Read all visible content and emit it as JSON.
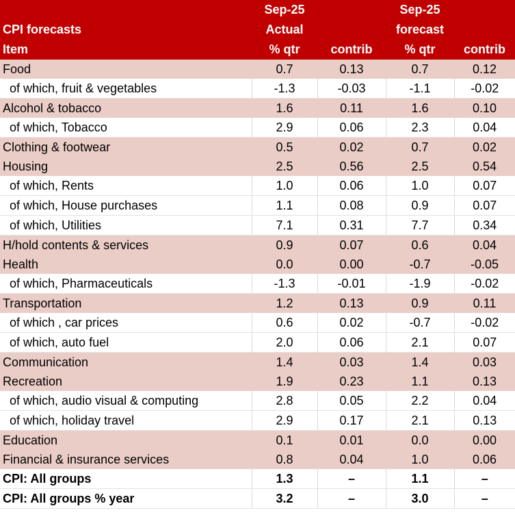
{
  "header": {
    "row1": [
      "",
      "Sep-25",
      "",
      "Sep-25",
      ""
    ],
    "row2": [
      "CPI forecasts",
      "Actual",
      "",
      "forecast",
      ""
    ],
    "row3": [
      "Item",
      "% qtr",
      "contrib",
      "% qtr",
      "contrib"
    ]
  },
  "rows": [
    {
      "type": "major",
      "item": "Food",
      "actual_qtr": "0.7",
      "actual_contrib": "0.13",
      "forecast_qtr": "0.7",
      "forecast_contrib": "0.12"
    },
    {
      "type": "sub",
      "item": "of which, fruit & vegetables",
      "actual_qtr": "-1.3",
      "actual_contrib": "-0.03",
      "forecast_qtr": "-1.1",
      "forecast_contrib": "-0.02"
    },
    {
      "type": "major",
      "item": "Alcohol & tobacco",
      "actual_qtr": "1.6",
      "actual_contrib": "0.11",
      "forecast_qtr": "1.6",
      "forecast_contrib": "0.10"
    },
    {
      "type": "sub",
      "item": "of which, Tobacco",
      "actual_qtr": "2.9",
      "actual_contrib": "0.06",
      "forecast_qtr": "2.3",
      "forecast_contrib": "0.04"
    },
    {
      "type": "major",
      "item": "Clothing & footwear",
      "actual_qtr": "0.5",
      "actual_contrib": "0.02",
      "forecast_qtr": "0.7",
      "forecast_contrib": "0.02"
    },
    {
      "type": "major",
      "item": "Housing",
      "actual_qtr": "2.5",
      "actual_contrib": "0.56",
      "forecast_qtr": "2.5",
      "forecast_contrib": "0.54"
    },
    {
      "type": "sub",
      "item": "of which, Rents",
      "actual_qtr": "1.0",
      "actual_contrib": "0.06",
      "forecast_qtr": "1.0",
      "forecast_contrib": "0.07"
    },
    {
      "type": "sub",
      "item": "of which, House purchases",
      "actual_qtr": "1.1",
      "actual_contrib": "0.08",
      "forecast_qtr": "0.9",
      "forecast_contrib": "0.07"
    },
    {
      "type": "sub",
      "item": "of which, Utilities",
      "actual_qtr": "7.1",
      "actual_contrib": "0.31",
      "forecast_qtr": "7.7",
      "forecast_contrib": "0.34"
    },
    {
      "type": "major",
      "item": "H/hold contents & services",
      "actual_qtr": "0.9",
      "actual_contrib": "0.07",
      "forecast_qtr": "0.6",
      "forecast_contrib": "0.04"
    },
    {
      "type": "major",
      "item": "Health",
      "actual_qtr": "0.0",
      "actual_contrib": "0.00",
      "forecast_qtr": "-0.7",
      "forecast_contrib": "-0.05"
    },
    {
      "type": "sub",
      "item": "of which, Pharmaceuticals",
      "actual_qtr": "-1.3",
      "actual_contrib": "-0.01",
      "forecast_qtr": "-1.9",
      "forecast_contrib": "-0.02"
    },
    {
      "type": "major",
      "item": "Transportation",
      "actual_qtr": "1.2",
      "actual_contrib": "0.13",
      "forecast_qtr": "0.9",
      "forecast_contrib": "0.11"
    },
    {
      "type": "sub",
      "item": "of which , car prices",
      "actual_qtr": "0.6",
      "actual_contrib": "0.02",
      "forecast_qtr": "-0.7",
      "forecast_contrib": "-0.02"
    },
    {
      "type": "sub",
      "item": "of which, auto fuel",
      "actual_qtr": "2.0",
      "actual_contrib": "0.06",
      "forecast_qtr": "2.1",
      "forecast_contrib": "0.07"
    },
    {
      "type": "major",
      "item": "Communication",
      "actual_qtr": "1.4",
      "actual_contrib": "0.03",
      "forecast_qtr": "1.4",
      "forecast_contrib": "0.03"
    },
    {
      "type": "major",
      "item": "Recreation",
      "actual_qtr": "1.9",
      "actual_contrib": "0.23",
      "forecast_qtr": "1.1",
      "forecast_contrib": "0.13"
    },
    {
      "type": "sub",
      "item": "of which, audio visual & computing",
      "actual_qtr": "2.8",
      "actual_contrib": "0.05",
      "forecast_qtr": "2.2",
      "forecast_contrib": "0.04"
    },
    {
      "type": "sub",
      "item": "of which, holiday travel",
      "actual_qtr": "2.9",
      "actual_contrib": "0.17",
      "forecast_qtr": "2.1",
      "forecast_contrib": "0.13"
    },
    {
      "type": "major",
      "item": "Education",
      "actual_qtr": "0.1",
      "actual_contrib": "0.01",
      "forecast_qtr": "0.0",
      "forecast_contrib": "0.00"
    },
    {
      "type": "major",
      "item": "Financial & insurance services",
      "actual_qtr": "0.8",
      "actual_contrib": "0.04",
      "forecast_qtr": "1.0",
      "forecast_contrib": "0.06"
    },
    {
      "type": "total",
      "item": "CPI: All groups",
      "actual_qtr": "1.3",
      "actual_contrib": "–",
      "forecast_qtr": "1.1",
      "forecast_contrib": "–"
    },
    {
      "type": "total",
      "item": "CPI: All groups % year",
      "actual_qtr": "3.2",
      "actual_contrib": "–",
      "forecast_qtr": "3.0",
      "forecast_contrib": "–"
    }
  ],
  "colors": {
    "header_bg": "#c00000",
    "header_text": "#ffffff",
    "major_row_bg": "#ebcdc7"
  }
}
